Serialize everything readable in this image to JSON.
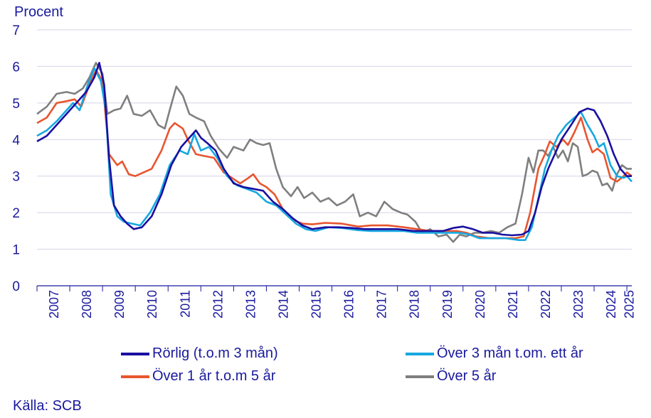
{
  "chart_data": {
    "type": "line",
    "ylabel": "Procent",
    "source": "Källa: SCB",
    "ylim": [
      0,
      7
    ],
    "yticks": [
      "0",
      "1",
      "2",
      "3",
      "4",
      "5",
      "6",
      "7"
    ],
    "xticks": [
      "2007",
      "2008",
      "2009",
      "2010",
      "2011",
      "2012",
      "2013",
      "2014",
      "2015",
      "2016",
      "2017",
      "2018",
      "2019",
      "2020",
      "2021",
      "2022",
      "2023",
      "2024",
      "2025"
    ],
    "xlim": [
      2007.0,
      2025.15
    ],
    "grid": true,
    "legend_position": "bottom",
    "series": [
      {
        "name": "Rörlig (t.o.m 3 mån)",
        "color": "#1a0fa0",
        "points": [
          [
            2007.0,
            3.95
          ],
          [
            2007.3,
            4.1
          ],
          [
            2007.6,
            4.4
          ],
          [
            2007.9,
            4.7
          ],
          [
            2008.2,
            5.0
          ],
          [
            2008.5,
            5.3
          ],
          [
            2008.75,
            5.7
          ],
          [
            2008.9,
            6.1
          ],
          [
            2009.05,
            5.5
          ],
          [
            2009.2,
            3.5
          ],
          [
            2009.35,
            2.2
          ],
          [
            2009.55,
            1.9
          ],
          [
            2009.75,
            1.7
          ],
          [
            2009.95,
            1.55
          ],
          [
            2010.2,
            1.6
          ],
          [
            2010.5,
            1.9
          ],
          [
            2010.8,
            2.5
          ],
          [
            2011.1,
            3.3
          ],
          [
            2011.4,
            3.8
          ],
          [
            2011.7,
            4.1
          ],
          [
            2011.85,
            4.25
          ],
          [
            2012.0,
            4.05
          ],
          [
            2012.2,
            3.9
          ],
          [
            2012.45,
            3.7
          ],
          [
            2012.7,
            3.2
          ],
          [
            2013.0,
            2.8
          ],
          [
            2013.3,
            2.7
          ],
          [
            2013.6,
            2.65
          ],
          [
            2013.9,
            2.6
          ],
          [
            2014.2,
            2.3
          ],
          [
            2014.5,
            2.1
          ],
          [
            2014.8,
            1.85
          ],
          [
            2015.1,
            1.65
          ],
          [
            2015.4,
            1.55
          ],
          [
            2015.8,
            1.6
          ],
          [
            2016.2,
            1.6
          ],
          [
            2016.6,
            1.58
          ],
          [
            2017.0,
            1.55
          ],
          [
            2017.5,
            1.55
          ],
          [
            2018.0,
            1.55
          ],
          [
            2018.5,
            1.5
          ],
          [
            2019.0,
            1.5
          ],
          [
            2019.4,
            1.5
          ],
          [
            2019.7,
            1.58
          ],
          [
            2020.0,
            1.62
          ],
          [
            2020.3,
            1.55
          ],
          [
            2020.6,
            1.45
          ],
          [
            2020.9,
            1.45
          ],
          [
            2021.2,
            1.4
          ],
          [
            2021.5,
            1.38
          ],
          [
            2021.8,
            1.4
          ],
          [
            2022.0,
            1.5
          ],
          [
            2022.2,
            2.0
          ],
          [
            2022.4,
            2.7
          ],
          [
            2022.6,
            3.2
          ],
          [
            2022.8,
            3.6
          ],
          [
            2023.0,
            4.0
          ],
          [
            2023.3,
            4.4
          ],
          [
            2023.55,
            4.75
          ],
          [
            2023.8,
            4.85
          ],
          [
            2024.0,
            4.8
          ],
          [
            2024.2,
            4.5
          ],
          [
            2024.4,
            4.1
          ],
          [
            2024.6,
            3.6
          ],
          [
            2024.8,
            3.2
          ],
          [
            2025.0,
            3.0
          ],
          [
            2025.15,
            3.0
          ]
        ]
      },
      {
        "name": "Över 3 mån t.om. ett år",
        "color": "#16a8e0",
        "points": [
          [
            2007.0,
            4.1
          ],
          [
            2007.3,
            4.25
          ],
          [
            2007.6,
            4.5
          ],
          [
            2007.9,
            4.8
          ],
          [
            2008.1,
            5.0
          ],
          [
            2008.3,
            4.8
          ],
          [
            2008.55,
            5.5
          ],
          [
            2008.75,
            5.95
          ],
          [
            2008.95,
            5.6
          ],
          [
            2009.1,
            4.8
          ],
          [
            2009.25,
            2.5
          ],
          [
            2009.45,
            1.9
          ],
          [
            2009.65,
            1.75
          ],
          [
            2009.9,
            1.7
          ],
          [
            2010.15,
            1.65
          ],
          [
            2010.45,
            2.0
          ],
          [
            2010.75,
            2.5
          ],
          [
            2011.05,
            3.3
          ],
          [
            2011.35,
            3.7
          ],
          [
            2011.6,
            3.6
          ],
          [
            2011.8,
            4.15
          ],
          [
            2012.0,
            3.7
          ],
          [
            2012.25,
            3.8
          ],
          [
            2012.5,
            3.5
          ],
          [
            2012.8,
            3.0
          ],
          [
            2013.1,
            2.75
          ],
          [
            2013.4,
            2.65
          ],
          [
            2013.7,
            2.55
          ],
          [
            2014.0,
            2.3
          ],
          [
            2014.3,
            2.2
          ],
          [
            2014.6,
            1.95
          ],
          [
            2014.9,
            1.7
          ],
          [
            2015.2,
            1.55
          ],
          [
            2015.5,
            1.5
          ],
          [
            2015.9,
            1.6
          ],
          [
            2016.3,
            1.58
          ],
          [
            2016.8,
            1.52
          ],
          [
            2017.2,
            1.5
          ],
          [
            2017.7,
            1.5
          ],
          [
            2018.2,
            1.5
          ],
          [
            2018.6,
            1.45
          ],
          [
            2019.0,
            1.45
          ],
          [
            2019.5,
            1.45
          ],
          [
            2019.9,
            1.45
          ],
          [
            2020.2,
            1.4
          ],
          [
            2020.5,
            1.3
          ],
          [
            2020.9,
            1.3
          ],
          [
            2021.3,
            1.3
          ],
          [
            2021.7,
            1.25
          ],
          [
            2021.9,
            1.25
          ],
          [
            2022.1,
            1.6
          ],
          [
            2022.3,
            2.4
          ],
          [
            2022.5,
            3.2
          ],
          [
            2022.7,
            3.7
          ],
          [
            2022.9,
            4.1
          ],
          [
            2023.15,
            4.4
          ],
          [
            2023.4,
            4.6
          ],
          [
            2023.6,
            4.75
          ],
          [
            2023.8,
            4.4
          ],
          [
            2024.0,
            4.1
          ],
          [
            2024.15,
            3.8
          ],
          [
            2024.3,
            3.9
          ],
          [
            2024.5,
            3.3
          ],
          [
            2024.7,
            3.0
          ],
          [
            2024.9,
            2.95
          ],
          [
            2025.0,
            3.0
          ],
          [
            2025.15,
            2.85
          ]
        ]
      },
      {
        "name": "Över 1 år t.o.m 5 år",
        "color": "#e8552f",
        "points": [
          [
            2007.0,
            4.45
          ],
          [
            2007.3,
            4.6
          ],
          [
            2007.6,
            5.0
          ],
          [
            2007.9,
            5.05
          ],
          [
            2008.15,
            5.1
          ],
          [
            2008.35,
            4.9
          ],
          [
            2008.6,
            5.5
          ],
          [
            2008.8,
            5.9
          ],
          [
            2009.0,
            5.6
          ],
          [
            2009.2,
            3.6
          ],
          [
            2009.45,
            3.3
          ],
          [
            2009.6,
            3.4
          ],
          [
            2009.8,
            3.05
          ],
          [
            2010.0,
            3.0
          ],
          [
            2010.25,
            3.1
          ],
          [
            2010.5,
            3.2
          ],
          [
            2010.8,
            3.7
          ],
          [
            2011.05,
            4.3
          ],
          [
            2011.2,
            4.45
          ],
          [
            2011.45,
            4.3
          ],
          [
            2011.6,
            4.0
          ],
          [
            2011.85,
            3.6
          ],
          [
            2012.1,
            3.55
          ],
          [
            2012.4,
            3.5
          ],
          [
            2012.7,
            3.1
          ],
          [
            2012.95,
            2.95
          ],
          [
            2013.2,
            2.8
          ],
          [
            2013.45,
            2.95
          ],
          [
            2013.6,
            3.05
          ],
          [
            2013.8,
            2.8
          ],
          [
            2014.0,
            2.7
          ],
          [
            2014.25,
            2.5
          ],
          [
            2014.5,
            2.1
          ],
          [
            2014.8,
            1.8
          ],
          [
            2015.1,
            1.7
          ],
          [
            2015.4,
            1.68
          ],
          [
            2015.8,
            1.72
          ],
          [
            2016.3,
            1.7
          ],
          [
            2016.8,
            1.62
          ],
          [
            2017.2,
            1.65
          ],
          [
            2017.7,
            1.65
          ],
          [
            2018.2,
            1.6
          ],
          [
            2018.6,
            1.55
          ],
          [
            2019.0,
            1.5
          ],
          [
            2019.4,
            1.5
          ],
          [
            2019.8,
            1.5
          ],
          [
            2020.1,
            1.45
          ],
          [
            2020.4,
            1.35
          ],
          [
            2020.8,
            1.3
          ],
          [
            2021.2,
            1.3
          ],
          [
            2021.6,
            1.3
          ],
          [
            2021.85,
            1.35
          ],
          [
            2022.05,
            2.0
          ],
          [
            2022.3,
            3.2
          ],
          [
            2022.5,
            3.6
          ],
          [
            2022.65,
            3.95
          ],
          [
            2022.85,
            3.8
          ],
          [
            2023.05,
            4.0
          ],
          [
            2023.2,
            3.85
          ],
          [
            2023.4,
            4.2
          ],
          [
            2023.6,
            4.6
          ],
          [
            2023.8,
            4.0
          ],
          [
            2023.95,
            3.65
          ],
          [
            2024.1,
            3.75
          ],
          [
            2024.3,
            3.6
          ],
          [
            2024.5,
            2.95
          ],
          [
            2024.7,
            2.85
          ],
          [
            2024.9,
            3.0
          ],
          [
            2025.0,
            3.1
          ],
          [
            2025.15,
            3.0
          ]
        ]
      },
      {
        "name": "Över 5 år",
        "color": "#7f7f7f",
        "points": [
          [
            2007.0,
            4.7
          ],
          [
            2007.3,
            4.9
          ],
          [
            2007.6,
            5.25
          ],
          [
            2007.9,
            5.3
          ],
          [
            2008.15,
            5.25
          ],
          [
            2008.4,
            5.4
          ],
          [
            2008.6,
            5.7
          ],
          [
            2008.8,
            6.1
          ],
          [
            2009.0,
            5.8
          ],
          [
            2009.15,
            4.7
          ],
          [
            2009.35,
            4.8
          ],
          [
            2009.55,
            4.85
          ],
          [
            2009.75,
            5.2
          ],
          [
            2009.95,
            4.7
          ],
          [
            2010.2,
            4.65
          ],
          [
            2010.45,
            4.8
          ],
          [
            2010.7,
            4.4
          ],
          [
            2010.9,
            4.3
          ],
          [
            2011.05,
            4.8
          ],
          [
            2011.25,
            5.45
          ],
          [
            2011.45,
            5.2
          ],
          [
            2011.65,
            4.7
          ],
          [
            2011.85,
            4.6
          ],
          [
            2012.1,
            4.5
          ],
          [
            2012.3,
            4.1
          ],
          [
            2012.55,
            3.75
          ],
          [
            2012.8,
            3.5
          ],
          [
            2013.0,
            3.8
          ],
          [
            2013.3,
            3.7
          ],
          [
            2013.5,
            4.0
          ],
          [
            2013.7,
            3.9
          ],
          [
            2013.9,
            3.85
          ],
          [
            2014.1,
            3.9
          ],
          [
            2014.3,
            3.2
          ],
          [
            2014.5,
            2.7
          ],
          [
            2014.75,
            2.45
          ],
          [
            2014.95,
            2.7
          ],
          [
            2015.15,
            2.4
          ],
          [
            2015.4,
            2.55
          ],
          [
            2015.65,
            2.3
          ],
          [
            2015.9,
            2.4
          ],
          [
            2016.15,
            2.2
          ],
          [
            2016.4,
            2.3
          ],
          [
            2016.65,
            2.5
          ],
          [
            2016.85,
            1.9
          ],
          [
            2017.1,
            2.0
          ],
          [
            2017.35,
            1.9
          ],
          [
            2017.6,
            2.3
          ],
          [
            2017.85,
            2.1
          ],
          [
            2018.1,
            2.0
          ],
          [
            2018.3,
            1.95
          ],
          [
            2018.55,
            1.75
          ],
          [
            2018.75,
            1.45
          ],
          [
            2019.0,
            1.55
          ],
          [
            2019.25,
            1.35
          ],
          [
            2019.5,
            1.4
          ],
          [
            2019.7,
            1.2
          ],
          [
            2019.9,
            1.4
          ],
          [
            2020.1,
            1.35
          ],
          [
            2020.35,
            1.45
          ],
          [
            2020.6,
            1.45
          ],
          [
            2020.85,
            1.5
          ],
          [
            2021.1,
            1.45
          ],
          [
            2021.35,
            1.6
          ],
          [
            2021.6,
            1.7
          ],
          [
            2021.8,
            2.5
          ],
          [
            2022.0,
            3.5
          ],
          [
            2022.15,
            3.1
          ],
          [
            2022.3,
            3.7
          ],
          [
            2022.45,
            3.7
          ],
          [
            2022.6,
            3.55
          ],
          [
            2022.75,
            3.8
          ],
          [
            2022.9,
            3.5
          ],
          [
            2023.05,
            3.7
          ],
          [
            2023.2,
            3.4
          ],
          [
            2023.35,
            3.9
          ],
          [
            2023.5,
            3.8
          ],
          [
            2023.65,
            3.0
          ],
          [
            2023.8,
            3.05
          ],
          [
            2023.95,
            3.15
          ],
          [
            2024.1,
            3.1
          ],
          [
            2024.25,
            2.75
          ],
          [
            2024.4,
            2.8
          ],
          [
            2024.55,
            2.6
          ],
          [
            2024.7,
            3.05
          ],
          [
            2024.85,
            3.3
          ],
          [
            2025.0,
            3.2
          ],
          [
            2025.15,
            3.2
          ]
        ]
      }
    ]
  }
}
